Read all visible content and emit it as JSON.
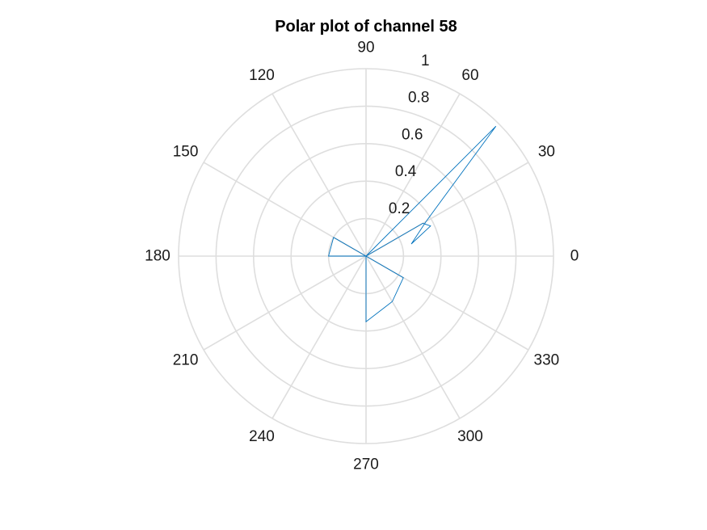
{
  "chart_data": {
    "type": "polar-line",
    "title": "Polar plot of channel 58",
    "theta_unit": "degrees",
    "theta_ticks": [
      0,
      30,
      60,
      90,
      120,
      150,
      180,
      210,
      240,
      270,
      300,
      330
    ],
    "theta_tick_labels": [
      "0",
      "30",
      "60",
      "90",
      "120",
      "150",
      "180",
      "210",
      "240",
      "270",
      "300",
      "330"
    ],
    "r_lim": [
      0,
      1
    ],
    "r_ticks": [
      0.2,
      0.4,
      0.6,
      0.8,
      1
    ],
    "r_tick_labels": [
      "0.2",
      "0.4",
      "0.6",
      "0.8",
      "1"
    ],
    "r_tick_angle_deg": 80,
    "grid": true,
    "series": [
      {
        "color": "#0072BD",
        "points": [
          {
            "theta": 0,
            "r": 0
          },
          {
            "theta": 45,
            "r": 0.98
          },
          {
            "theta": 30,
            "r": 0.37
          },
          {
            "theta": 15,
            "r": 0.25
          },
          {
            "theta": 25,
            "r": 0.38
          },
          {
            "theta": 30,
            "r": 0.35
          },
          {
            "theta": 0,
            "r": 0
          },
          {
            "theta": 330,
            "r": 0.23
          },
          {
            "theta": 300,
            "r": 0.28
          },
          {
            "theta": 270,
            "r": 0.35
          },
          {
            "theta": 0,
            "r": 0
          },
          {
            "theta": 180,
            "r": 0.2
          },
          {
            "theta": 150,
            "r": 0.2
          },
          {
            "theta": 0,
            "r": 0
          }
        ]
      }
    ]
  }
}
